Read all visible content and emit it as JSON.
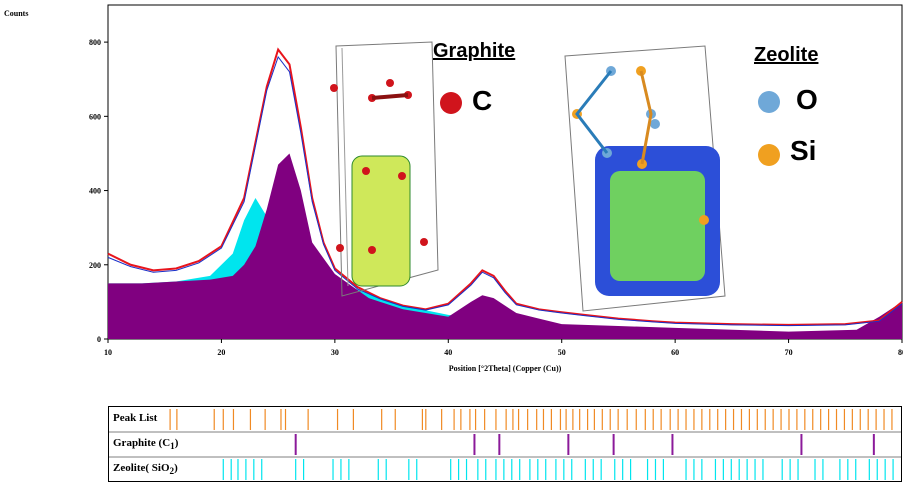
{
  "chart_data": {
    "type": "line",
    "ylabel": "Counts",
    "xlabel": "Position [°2Theta] (Copper (Cu))",
    "xlim": [
      10,
      80
    ],
    "ylim": [
      0,
      900
    ],
    "x_ticks": [
      10,
      20,
      30,
      40,
      50,
      60,
      70,
      80
    ],
    "y_ticks": [
      0,
      200,
      400,
      600,
      800
    ],
    "series": [
      {
        "color": "#e8141c",
        "x": [
          10,
          12,
          14,
          16,
          18,
          20,
          22,
          23,
          24,
          25,
          26,
          27,
          28,
          29,
          30,
          32,
          34,
          36,
          38,
          40,
          42,
          43,
          44,
          45,
          46,
          48,
          50,
          52,
          55,
          58,
          60,
          65,
          70,
          75,
          78,
          80
        ],
        "y": [
          230,
          200,
          185,
          190,
          210,
          250,
          380,
          530,
          680,
          780,
          740,
          570,
          380,
          260,
          190,
          140,
          110,
          90,
          80,
          95,
          150,
          185,
          170,
          130,
          95,
          80,
          72,
          65,
          55,
          48,
          44,
          40,
          38,
          40,
          50,
          100
        ]
      },
      {
        "color": "#1a2fc8",
        "x": [
          10,
          12,
          14,
          16,
          18,
          20,
          22,
          23,
          24,
          25,
          26,
          27,
          28,
          29,
          30,
          32,
          34,
          36,
          38,
          40,
          42,
          43,
          44,
          45,
          46,
          48,
          50,
          52,
          55,
          58,
          60,
          65,
          70,
          75,
          78,
          80
        ],
        "y": [
          220,
          195,
          180,
          185,
          205,
          245,
          370,
          520,
          670,
          760,
          720,
          555,
          370,
          255,
          185,
          135,
          108,
          88,
          78,
          92,
          145,
          180,
          165,
          125,
          92,
          78,
          70,
          63,
          53,
          46,
          42,
          38,
          36,
          38,
          48,
          95
        ]
      },
      {
        "color": "#00e5ee",
        "x": [
          10,
          13,
          16,
          19,
          21,
          22,
          23,
          24,
          25,
          26,
          27,
          28,
          30,
          33,
          36,
          40,
          43,
          46,
          50,
          55,
          60,
          70,
          80
        ],
        "y": [
          150,
          150,
          155,
          170,
          230,
          320,
          380,
          330,
          260,
          220,
          190,
          170,
          160,
          120,
          90,
          65,
          52,
          40,
          30,
          25,
          20,
          15,
          10
        ]
      },
      {
        "color": "#800080",
        "x": [
          10,
          13,
          16,
          19,
          21,
          22,
          23,
          24,
          25,
          26,
          27,
          28,
          30,
          33,
          36,
          40,
          42,
          43,
          44,
          46,
          48,
          50,
          55,
          60,
          70,
          76,
          78,
          80
        ],
        "y": [
          150,
          150,
          155,
          160,
          170,
          200,
          250,
          350,
          470,
          500,
          400,
          260,
          175,
          110,
          80,
          60,
          100,
          118,
          110,
          70,
          55,
          40,
          35,
          30,
          20,
          25,
          60,
          100
        ]
      }
    ]
  },
  "legend": {
    "graphite_title": "Graphite",
    "graphite_el": "C",
    "zeolite_title": "Zeolite",
    "zeolite_o": "O",
    "zeolite_si": "Si",
    "colors": {
      "C": "#d0141c",
      "O": "#6fa8d8",
      "Si": "#f0a020"
    }
  },
  "peak_list": {
    "rows": [
      {
        "label": "Peak List",
        "color": "#f08a24",
        "positions": [
          15.4,
          16.0,
          19.3,
          20.1,
          21.0,
          22.5,
          23.8,
          25.2,
          25.6,
          27.6,
          30.2,
          31.6,
          34.1,
          35.3,
          37.7,
          38.0,
          39.4,
          40.5,
          41.1,
          41.9,
          42.4,
          43.2,
          44.2,
          45.1,
          45.7,
          46.2,
          47.0,
          47.8,
          48.4,
          49.1,
          49.9,
          50.4,
          51.0,
          51.6,
          52.3,
          52.9,
          53.6,
          54.3,
          55.0,
          55.8,
          56.6,
          57.4,
          58.1,
          58.8,
          59.6,
          60.3,
          61.0,
          61.7,
          62.4,
          63.1,
          63.8,
          64.5,
          65.2,
          65.9,
          66.6,
          67.3,
          68.0,
          68.7,
          69.4,
          70.1,
          70.8,
          71.5,
          72.2,
          72.9,
          73.6,
          74.3,
          75.0,
          75.7,
          76.4,
          77.1,
          77.8,
          78.5,
          79.2
        ]
      },
      {
        "label": "Graphite (C",
        "sub": "1",
        "label_end": ")",
        "color": "#8b1a9a",
        "positions": [
          26.5,
          42.3,
          44.5,
          50.6,
          54.6,
          59.8,
          71.2,
          77.6
        ]
      },
      {
        "label": "Zeolite( SiO",
        "sub": "2",
        "label_end": ")",
        "color": "#00e5ee",
        "positions": [
          20.1,
          20.8,
          21.4,
          22.1,
          22.8,
          23.5,
          26.5,
          27.2,
          29.8,
          30.5,
          31.2,
          33.8,
          34.5,
          36.5,
          37.2,
          40.2,
          40.9,
          41.6,
          42.6,
          43.3,
          44.2,
          44.9,
          45.6,
          46.3,
          47.2,
          47.9,
          48.6,
          49.5,
          50.2,
          50.9,
          52.1,
          52.8,
          53.5,
          54.7,
          55.4,
          56.1,
          57.6,
          58.3,
          59.0,
          61.0,
          61.7,
          62.4,
          63.6,
          64.3,
          65.0,
          65.7,
          66.4,
          67.1,
          67.8,
          69.5,
          70.2,
          70.9,
          72.4,
          73.1,
          74.6,
          75.3,
          76.0,
          77.2,
          77.9,
          78.6,
          79.3
        ]
      }
    ]
  }
}
